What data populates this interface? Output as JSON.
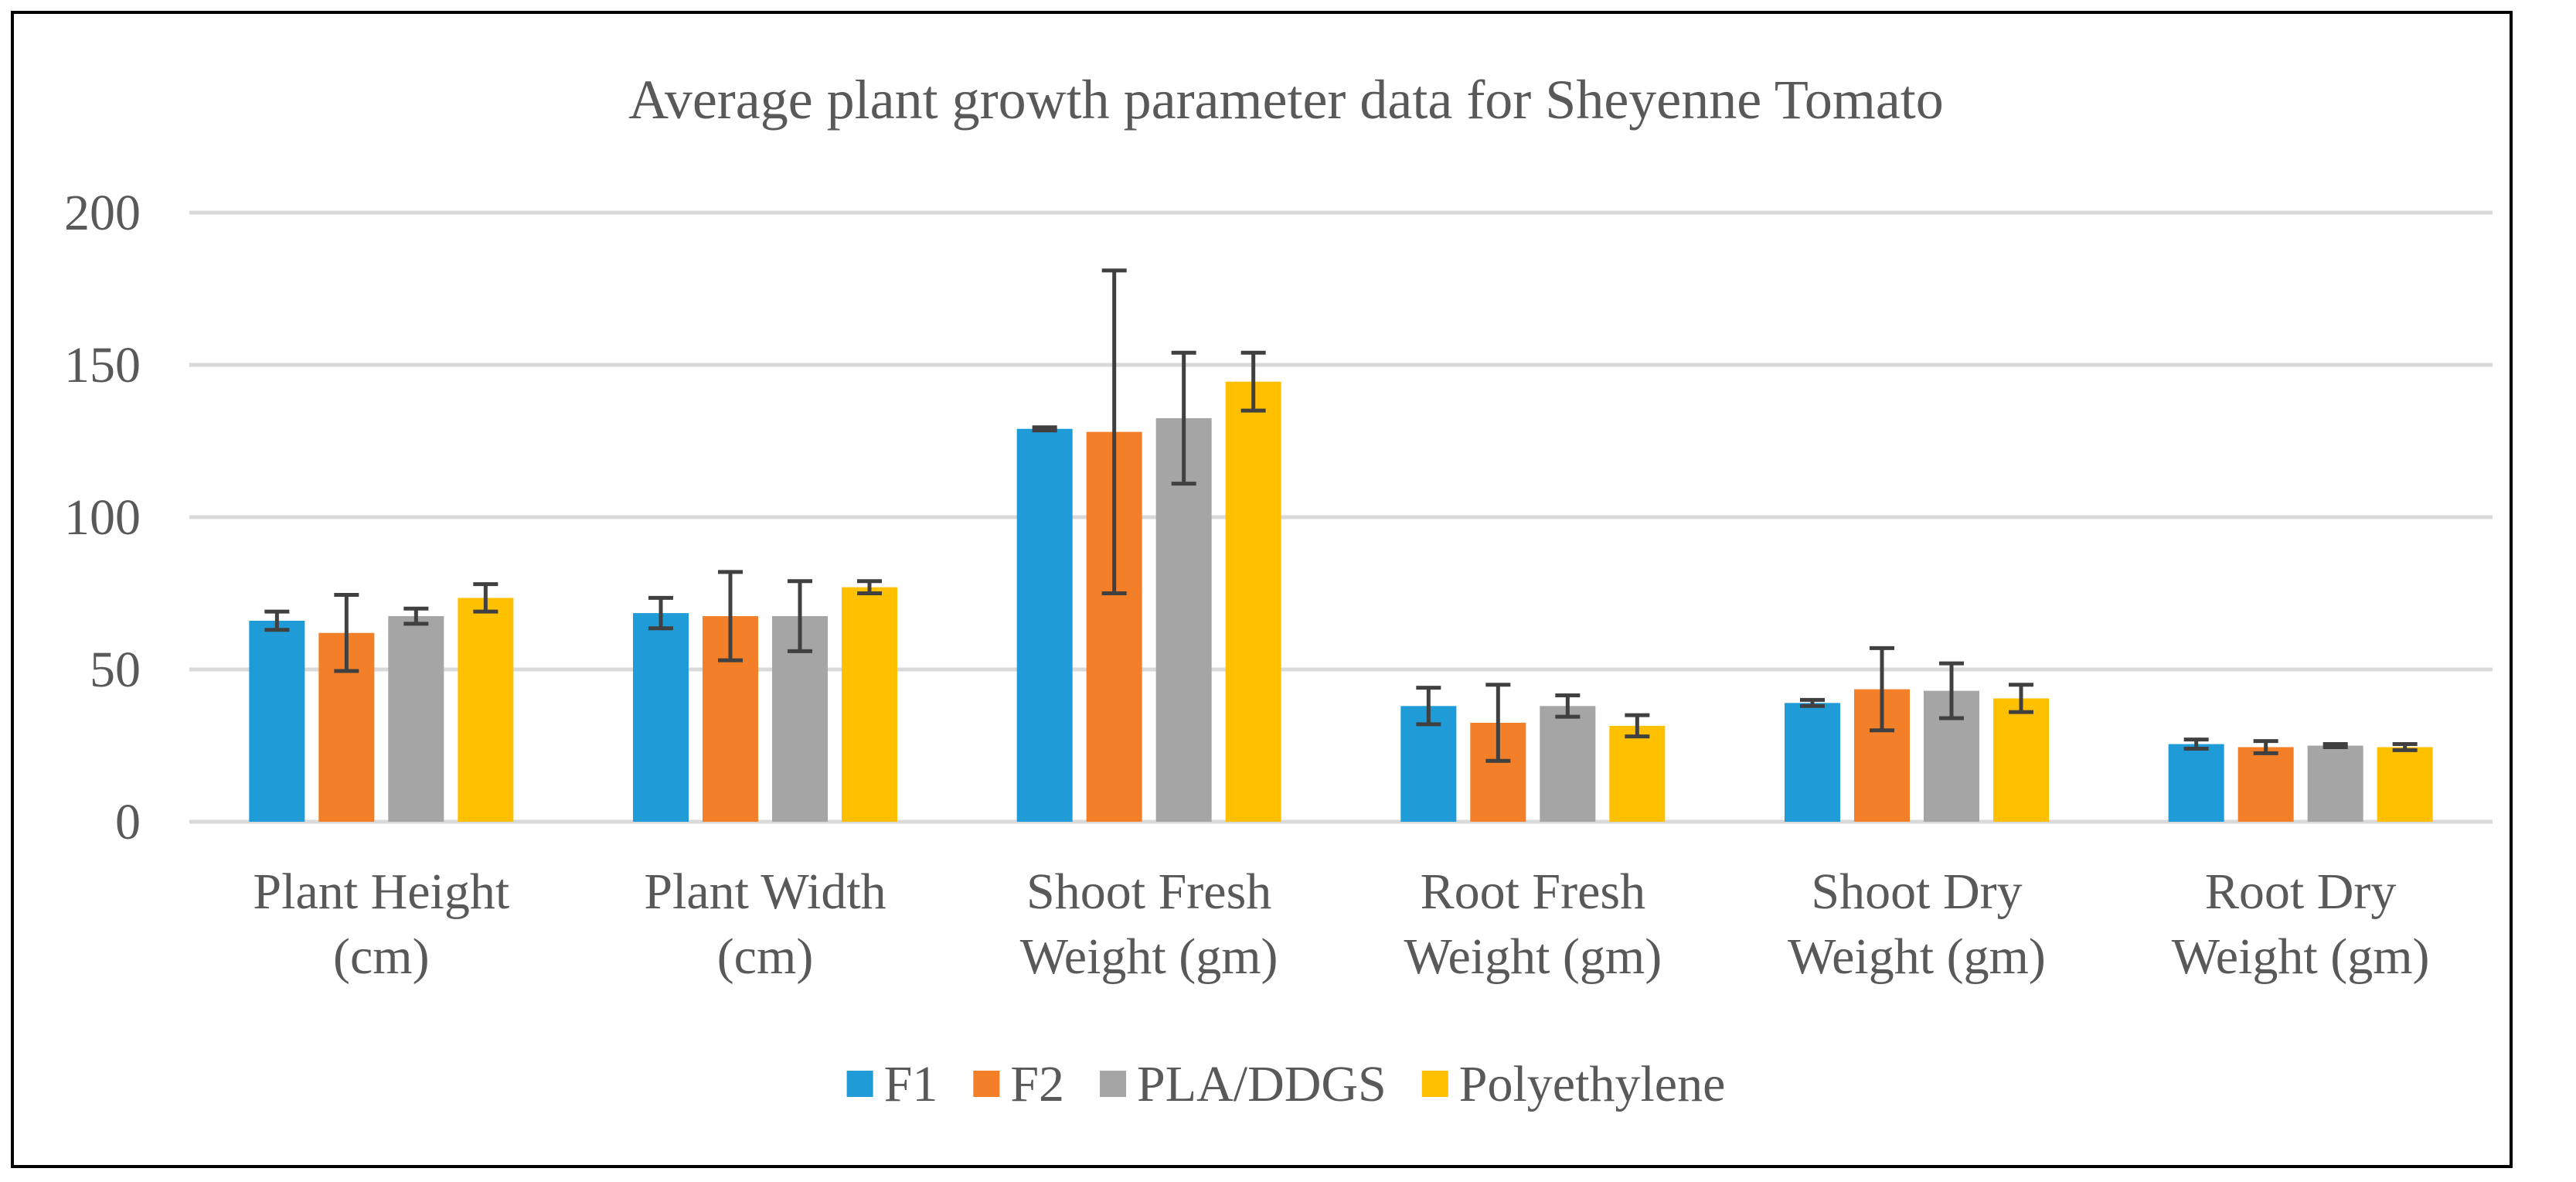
{
  "chart_data": {
    "type": "bar",
    "title": "Average plant growth parameter data for Sheyenne Tomato",
    "xlabel": "",
    "ylabel": "",
    "ylim": [
      0,
      200
    ],
    "yticks": [
      0,
      50,
      100,
      150,
      200
    ],
    "grid": true,
    "legend_position": "bottom",
    "categories": [
      [
        "Plant Height",
        "(cm)"
      ],
      [
        "Plant Width",
        "(cm)"
      ],
      [
        "Shoot Fresh",
        "Weight (gm)"
      ],
      [
        "Root Fresh",
        "Weight (gm)"
      ],
      [
        "Shoot Dry",
        "Weight (gm)"
      ],
      [
        "Root Dry",
        "Weight (gm)"
      ]
    ],
    "series": [
      {
        "name": "F1",
        "color": "#1F9BD7",
        "values": [
          66,
          68.5,
          129,
          38,
          39,
          25.5
        ],
        "errors": [
          3,
          5,
          0.5,
          6,
          1,
          1.5
        ]
      },
      {
        "name": "F2",
        "color": "#F47F29",
        "values": [
          62,
          67.5,
          128,
          32.5,
          43.5,
          24.5
        ],
        "errors": [
          12.5,
          14.5,
          53,
          12.5,
          13.5,
          2
        ]
      },
      {
        "name": "PLA/DDGS",
        "color": "#A5A5A5",
        "values": [
          67.5,
          67.5,
          132.5,
          38,
          43,
          25
        ],
        "errors": [
          2.5,
          11.5,
          21.5,
          3.5,
          9,
          0.5
        ]
      },
      {
        "name": "Polyethylene",
        "color": "#FFC000",
        "values": [
          73.5,
          77,
          144.5,
          31.5,
          40.5,
          24.5
        ],
        "errors": [
          4.5,
          2,
          9.5,
          3.5,
          4.5,
          1
        ]
      }
    ]
  },
  "colors": {
    "gridline": "#D9D9D9",
    "error_bar": "#404040",
    "text": "#595959"
  }
}
